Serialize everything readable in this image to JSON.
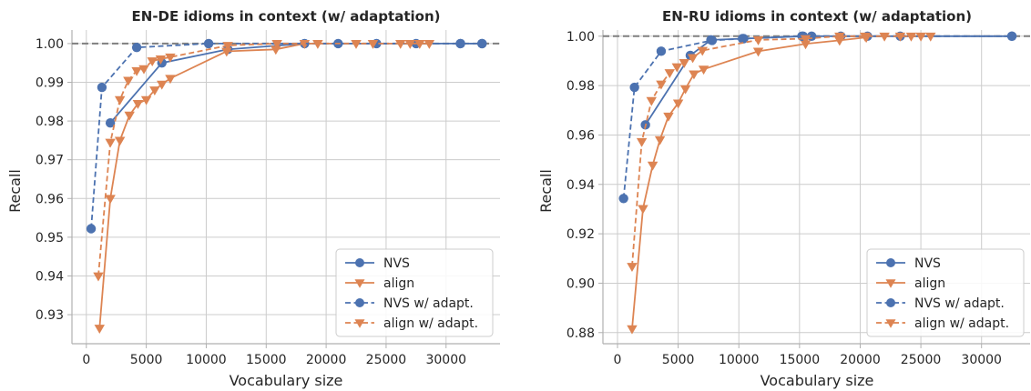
{
  "chart_data": [
    {
      "type": "line",
      "title": "EN-DE idioms in context (w/ adaptation)",
      "xlabel": "Vocabulary size",
      "ylabel": "Recall",
      "xlim": [
        -1200,
        34500
      ],
      "ylim": [
        0.9225,
        1.0035
      ],
      "xticks": [
        0,
        5000,
        10000,
        15000,
        20000,
        25000,
        30000
      ],
      "yticks": [
        0.93,
        0.94,
        0.95,
        0.96,
        0.97,
        0.98,
        0.99,
        1.0
      ],
      "ytick_labels": [
        "0.93",
        "0.94",
        "0.95",
        "0.96",
        "0.97",
        "0.98",
        "0.99",
        "1.00"
      ],
      "reference_line": 1.0,
      "grid": true,
      "legend": "lower-right",
      "series": [
        {
          "name": "NVS",
          "color": "#4c72b0",
          "linestyle": "solid",
          "marker": "circle",
          "x": [
            2000,
            6300,
            11800,
            18200,
            24200,
            27500,
            31200,
            33000
          ],
          "y": [
            0.9795,
            0.995,
            0.9985,
            1.0,
            1.0,
            1.0,
            1.0,
            1.0
          ]
        },
        {
          "name": "align",
          "color": "#dd8452",
          "linestyle": "solid",
          "marker": "triangle-down",
          "x": [
            1100,
            2000,
            2800,
            3600,
            4300,
            5000,
            5700,
            6300,
            7000,
            11700,
            15800,
            18200
          ],
          "y": [
            0.9265,
            0.96,
            0.975,
            0.9815,
            0.9845,
            0.9855,
            0.988,
            0.9895,
            0.991,
            0.998,
            0.9985,
            1.0
          ]
        },
        {
          "name": "NVS w/ adapt.",
          "color": "#4c72b0",
          "linestyle": "dashed",
          "marker": "circle",
          "x": [
            400,
            1300,
            4200,
            10200,
            21000,
            31200,
            33000
          ],
          "y": [
            0.9522,
            0.9887,
            0.999,
            1.0,
            1.0,
            1.0,
            1.0
          ]
        },
        {
          "name": "align w/ adapt.",
          "color": "#dd8452",
          "linestyle": "dashed",
          "marker": "triangle-down",
          "x": [
            1000,
            2000,
            2800,
            3500,
            4200,
            4800,
            5500,
            6200,
            7000,
            11800,
            15900,
            19300,
            22500,
            23900,
            26200,
            27000,
            27800,
            28600
          ],
          "y": [
            0.94,
            0.9745,
            0.9855,
            0.9905,
            0.993,
            0.9935,
            0.9955,
            0.996,
            0.9965,
            0.9995,
            1.0,
            1.0,
            1.0,
            1.0,
            1.0,
            1.0,
            1.0,
            1.0
          ]
        }
      ]
    },
    {
      "type": "line",
      "title": "EN-RU idioms in context (w/ adaptation)",
      "xlabel": "Vocabulary size",
      "ylabel": "Recall",
      "xlim": [
        -1200,
        34000
      ],
      "ylim": [
        0.8755,
        1.0025
      ],
      "xticks": [
        0,
        5000,
        10000,
        15000,
        20000,
        25000,
        30000
      ],
      "yticks": [
        0.88,
        0.9,
        0.92,
        0.94,
        0.96,
        0.98,
        1.0
      ],
      "ytick_labels": [
        "0.88",
        "0.90",
        "0.92",
        "0.94",
        "0.96",
        "0.98",
        "1.00"
      ],
      "reference_line": 1.0,
      "grid": true,
      "legend": "lower-right",
      "series": [
        {
          "name": "NVS",
          "color": "#4c72b0",
          "linestyle": "solid",
          "marker": "circle",
          "x": [
            2300,
            6000,
            7700,
            10400,
            15300,
            16000,
            18400,
            20600,
            23300,
            32500
          ],
          "y": [
            0.9641,
            0.9922,
            0.9985,
            0.999,
            1.0,
            1.0,
            1.0,
            1.0,
            1.0,
            1.0
          ]
        },
        {
          "name": "align",
          "color": "#dd8452",
          "linestyle": "solid",
          "marker": "triangle-down",
          "x": [
            1200,
            2100,
            2900,
            3500,
            4200,
            5000,
            5600,
            6300,
            7100,
            11600,
            15500,
            18300,
            20500
          ],
          "y": [
            0.8815,
            0.9302,
            0.9478,
            0.9581,
            0.9676,
            0.9729,
            0.9787,
            0.9847,
            0.9866,
            0.9939,
            0.9969,
            0.9983,
            0.9995
          ]
        },
        {
          "name": "NVS w/ adapt.",
          "color": "#4c72b0",
          "linestyle": "dashed",
          "marker": "circle",
          "x": [
            500,
            1400,
            3600,
            7800,
            10300,
            15200,
            32500
          ],
          "y": [
            0.9343,
            0.9793,
            0.9939,
            0.9983,
            0.999,
            1.0,
            1.0
          ]
        },
        {
          "name": "align w/ adapt.",
          "color": "#dd8452",
          "linestyle": "dashed",
          "marker": "triangle-down",
          "x": [
            1200,
            2000,
            2800,
            3600,
            4300,
            4900,
            5500,
            6200,
            7000,
            11600,
            15500,
            18300,
            20400,
            22000,
            23300,
            24200,
            25000,
            25800
          ],
          "y": [
            0.9068,
            0.9573,
            0.9739,
            0.9806,
            0.9852,
            0.9876,
            0.9893,
            0.9913,
            0.9942,
            0.9985,
            0.999,
            1.0,
            1.0,
            1.0,
            1.0,
            1.0,
            1.0,
            1.0
          ]
        }
      ]
    }
  ]
}
